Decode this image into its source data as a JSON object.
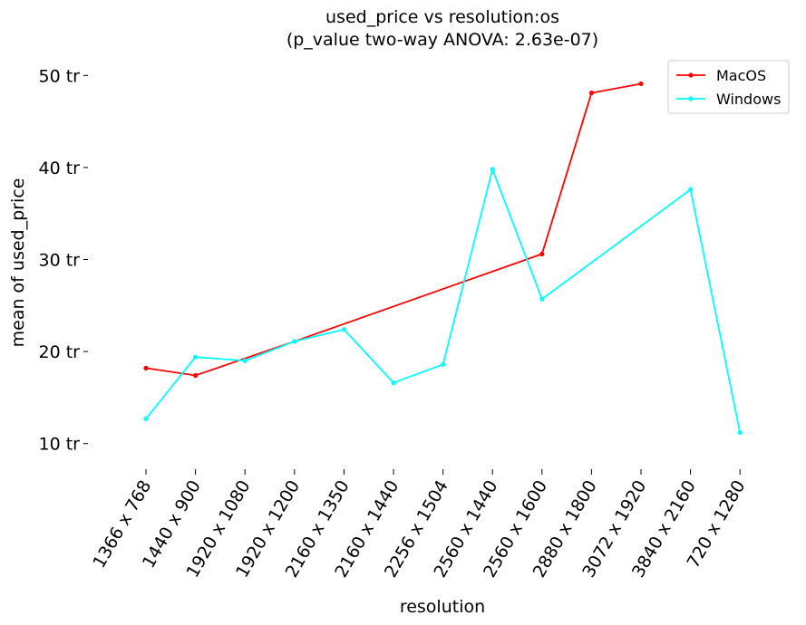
{
  "chart_data": {
    "type": "line",
    "title": "used_price vs resolution:os",
    "subtitle": "(p_value two-way ANOVA: 2.63e-07)",
    "xlabel": "resolution",
    "ylabel": "mean of used_price",
    "ylim": [
      8,
      52
    ],
    "yticks": [
      10,
      20,
      30,
      40,
      50
    ],
    "ytick_labels": [
      "10 tr",
      "20 tr",
      "30 tr",
      "40 tr",
      "50 tr"
    ],
    "categories": [
      "1366 x 768",
      "1440 x 900",
      "1920 x 1080",
      "1920 x 1200",
      "2160 x 1350",
      "2160 x 1440",
      "2256 x 1504",
      "2560 x 1440",
      "2560 x 1600",
      "2880 x 1800",
      "3072 x 1920",
      "3840 x 2160",
      "720 x 1280"
    ],
    "series": [
      {
        "name": "MacOS",
        "color": "#ff0000",
        "values": [
          18.2,
          17.4,
          null,
          21.1,
          null,
          null,
          null,
          null,
          30.6,
          48.1,
          49.1,
          null,
          null
        ]
      },
      {
        "name": "Windows",
        "color": "#00ffff",
        "values": [
          12.7,
          19.4,
          19.0,
          21.1,
          22.4,
          16.6,
          18.6,
          39.8,
          25.7,
          null,
          null,
          37.6,
          11.2
        ]
      }
    ],
    "legend": "top-right",
    "grid": false
  }
}
